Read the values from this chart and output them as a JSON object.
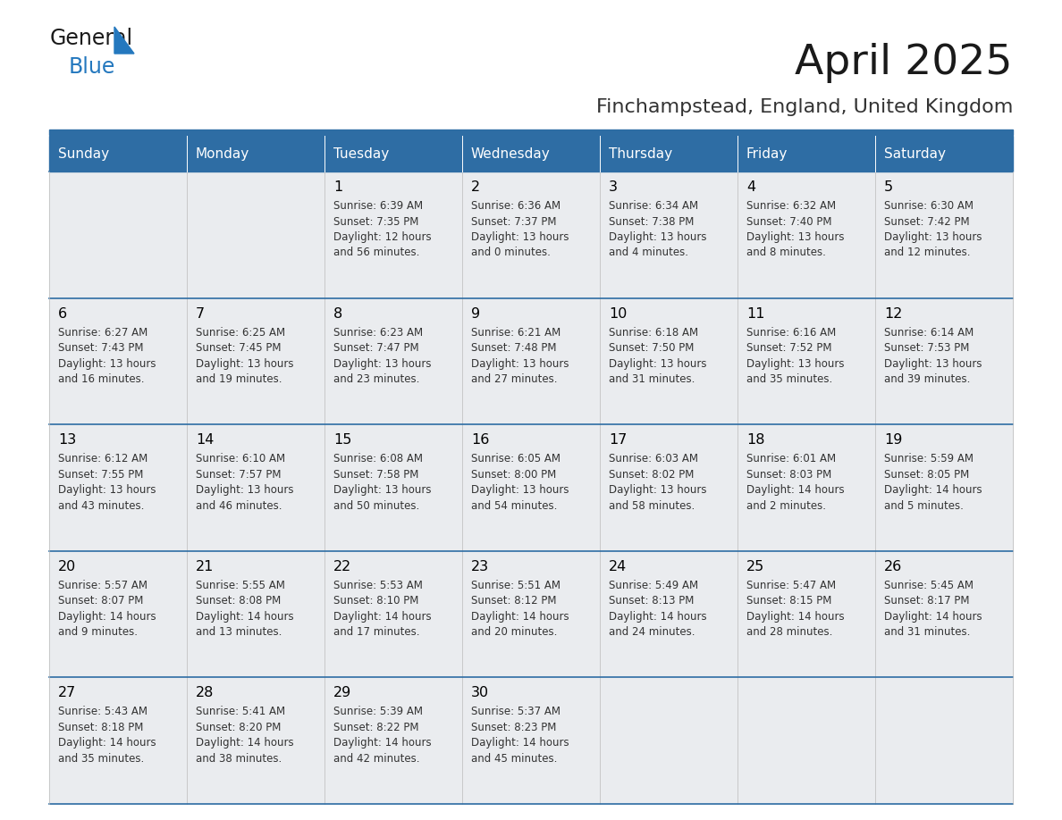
{
  "title": "April 2025",
  "subtitle": "Finchampstead, England, United Kingdom",
  "header_bg": "#2E6DA4",
  "header_text_color": "#FFFFFF",
  "day_names": [
    "Sunday",
    "Monday",
    "Tuesday",
    "Wednesday",
    "Thursday",
    "Friday",
    "Saturday"
  ],
  "cell_bg": "#EAECEF",
  "cell_bg_empty": "#EAECEF",
  "cell_border_color": "#AAAAAA",
  "row_divider_color": "#2E6DA4",
  "day_num_color": "#000000",
  "cell_text_color": "#333333",
  "title_color": "#1a1a1a",
  "subtitle_color": "#333333",
  "logo_text_color": "#1a1a1a",
  "logo_blue_color": "#2478BE",
  "calendar": [
    [
      {
        "day": 0,
        "text": ""
      },
      {
        "day": 0,
        "text": ""
      },
      {
        "day": 1,
        "text": "Sunrise: 6:39 AM\nSunset: 7:35 PM\nDaylight: 12 hours\nand 56 minutes."
      },
      {
        "day": 2,
        "text": "Sunrise: 6:36 AM\nSunset: 7:37 PM\nDaylight: 13 hours\nand 0 minutes."
      },
      {
        "day": 3,
        "text": "Sunrise: 6:34 AM\nSunset: 7:38 PM\nDaylight: 13 hours\nand 4 minutes."
      },
      {
        "day": 4,
        "text": "Sunrise: 6:32 AM\nSunset: 7:40 PM\nDaylight: 13 hours\nand 8 minutes."
      },
      {
        "day": 5,
        "text": "Sunrise: 6:30 AM\nSunset: 7:42 PM\nDaylight: 13 hours\nand 12 minutes."
      }
    ],
    [
      {
        "day": 6,
        "text": "Sunrise: 6:27 AM\nSunset: 7:43 PM\nDaylight: 13 hours\nand 16 minutes."
      },
      {
        "day": 7,
        "text": "Sunrise: 6:25 AM\nSunset: 7:45 PM\nDaylight: 13 hours\nand 19 minutes."
      },
      {
        "day": 8,
        "text": "Sunrise: 6:23 AM\nSunset: 7:47 PM\nDaylight: 13 hours\nand 23 minutes."
      },
      {
        "day": 9,
        "text": "Sunrise: 6:21 AM\nSunset: 7:48 PM\nDaylight: 13 hours\nand 27 minutes."
      },
      {
        "day": 10,
        "text": "Sunrise: 6:18 AM\nSunset: 7:50 PM\nDaylight: 13 hours\nand 31 minutes."
      },
      {
        "day": 11,
        "text": "Sunrise: 6:16 AM\nSunset: 7:52 PM\nDaylight: 13 hours\nand 35 minutes."
      },
      {
        "day": 12,
        "text": "Sunrise: 6:14 AM\nSunset: 7:53 PM\nDaylight: 13 hours\nand 39 minutes."
      }
    ],
    [
      {
        "day": 13,
        "text": "Sunrise: 6:12 AM\nSunset: 7:55 PM\nDaylight: 13 hours\nand 43 minutes."
      },
      {
        "day": 14,
        "text": "Sunrise: 6:10 AM\nSunset: 7:57 PM\nDaylight: 13 hours\nand 46 minutes."
      },
      {
        "day": 15,
        "text": "Sunrise: 6:08 AM\nSunset: 7:58 PM\nDaylight: 13 hours\nand 50 minutes."
      },
      {
        "day": 16,
        "text": "Sunrise: 6:05 AM\nSunset: 8:00 PM\nDaylight: 13 hours\nand 54 minutes."
      },
      {
        "day": 17,
        "text": "Sunrise: 6:03 AM\nSunset: 8:02 PM\nDaylight: 13 hours\nand 58 minutes."
      },
      {
        "day": 18,
        "text": "Sunrise: 6:01 AM\nSunset: 8:03 PM\nDaylight: 14 hours\nand 2 minutes."
      },
      {
        "day": 19,
        "text": "Sunrise: 5:59 AM\nSunset: 8:05 PM\nDaylight: 14 hours\nand 5 minutes."
      }
    ],
    [
      {
        "day": 20,
        "text": "Sunrise: 5:57 AM\nSunset: 8:07 PM\nDaylight: 14 hours\nand 9 minutes."
      },
      {
        "day": 21,
        "text": "Sunrise: 5:55 AM\nSunset: 8:08 PM\nDaylight: 14 hours\nand 13 minutes."
      },
      {
        "day": 22,
        "text": "Sunrise: 5:53 AM\nSunset: 8:10 PM\nDaylight: 14 hours\nand 17 minutes."
      },
      {
        "day": 23,
        "text": "Sunrise: 5:51 AM\nSunset: 8:12 PM\nDaylight: 14 hours\nand 20 minutes."
      },
      {
        "day": 24,
        "text": "Sunrise: 5:49 AM\nSunset: 8:13 PM\nDaylight: 14 hours\nand 24 minutes."
      },
      {
        "day": 25,
        "text": "Sunrise: 5:47 AM\nSunset: 8:15 PM\nDaylight: 14 hours\nand 28 minutes."
      },
      {
        "day": 26,
        "text": "Sunrise: 5:45 AM\nSunset: 8:17 PM\nDaylight: 14 hours\nand 31 minutes."
      }
    ],
    [
      {
        "day": 27,
        "text": "Sunrise: 5:43 AM\nSunset: 8:18 PM\nDaylight: 14 hours\nand 35 minutes."
      },
      {
        "day": 28,
        "text": "Sunrise: 5:41 AM\nSunset: 8:20 PM\nDaylight: 14 hours\nand 38 minutes."
      },
      {
        "day": 29,
        "text": "Sunrise: 5:39 AM\nSunset: 8:22 PM\nDaylight: 14 hours\nand 42 minutes."
      },
      {
        "day": 30,
        "text": "Sunrise: 5:37 AM\nSunset: 8:23 PM\nDaylight: 14 hours\nand 45 minutes."
      },
      {
        "day": 0,
        "text": ""
      },
      {
        "day": 0,
        "text": ""
      },
      {
        "day": 0,
        "text": ""
      }
    ]
  ]
}
